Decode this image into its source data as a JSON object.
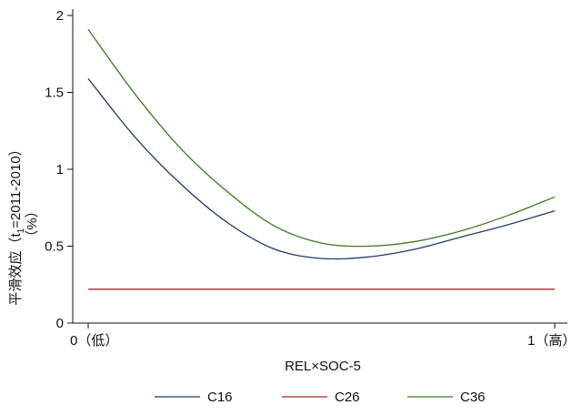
{
  "chart_data": {
    "type": "line",
    "title": "",
    "xlabel": "REL×SOC-5",
    "ylabel": "平滑效应（t₁=2011-2010）（%）",
    "ylabel_line1": "平滑效应（t",
    "ylabel_sub": "1",
    "ylabel_line1_rest": "=2011-2010）",
    "ylabel_line2": "（%）",
    "xlim": [
      0,
      1
    ],
    "ylim": [
      0,
      2
    ],
    "x_ticks": [
      {
        "value": 0,
        "label": "0（低）"
      },
      {
        "value": 1,
        "label": "1（高）"
      }
    ],
    "y_ticks": [
      {
        "value": 0,
        "label": "0"
      },
      {
        "value": 0.5,
        "label": "0.5"
      },
      {
        "value": 1,
        "label": "1"
      },
      {
        "value": 1.5,
        "label": "1.5"
      },
      {
        "value": 2,
        "label": "2"
      }
    ],
    "grid": false,
    "legend_position": "bottom",
    "x": [
      0,
      0.1,
      0.2,
      0.3,
      0.4,
      0.5,
      0.6,
      0.7,
      0.8,
      0.9,
      1.0
    ],
    "series": [
      {
        "name": "C16",
        "color": "#1f3a6e",
        "values": [
          1.59,
          1.21,
          0.9,
          0.65,
          0.48,
          0.42,
          0.43,
          0.48,
          0.56,
          0.64,
          0.73
        ]
      },
      {
        "name": "C26",
        "color": "#a52a2a",
        "values": [
          0.22,
          0.22,
          0.22,
          0.22,
          0.22,
          0.22,
          0.22,
          0.22,
          0.22,
          0.22,
          0.22
        ]
      },
      {
        "name": "C36",
        "color": "#3a7a1e",
        "values": [
          1.91,
          1.49,
          1.13,
          0.85,
          0.63,
          0.52,
          0.5,
          0.53,
          0.6,
          0.7,
          0.82
        ]
      }
    ]
  }
}
